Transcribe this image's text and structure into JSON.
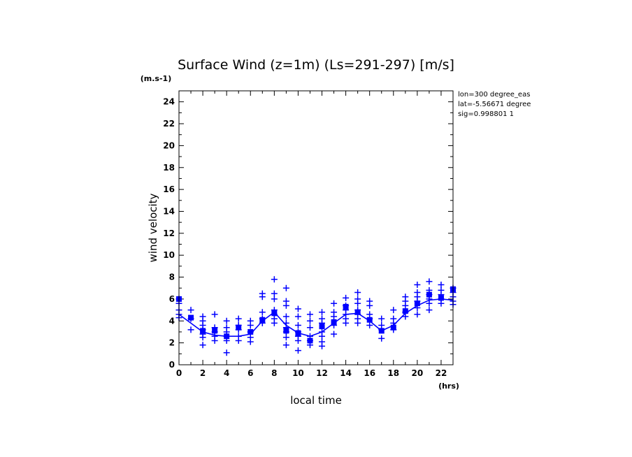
{
  "chart_data": {
    "type": "scatter",
    "title": "Surface Wind (z=1m) (Ls=291-297) [m/s]",
    "y_unit": "(m.s-1)",
    "x_unit": "(hrs)",
    "xlabel": "local time",
    "ylabel": "wind velocity",
    "xlim": [
      0,
      23
    ],
    "ylim": [
      0,
      25
    ],
    "x_ticks": [
      0,
      2,
      4,
      6,
      8,
      10,
      12,
      14,
      16,
      18,
      20,
      22
    ],
    "y_ticks": [
      0,
      2,
      4,
      6,
      8,
      10,
      12,
      14,
      16,
      18,
      20,
      22,
      24
    ],
    "info_lines": [
      "lon=300 degree_eas",
      "lat=-5.56671 degree",
      "sig=0.998801 1"
    ],
    "grid": false,
    "colors": {
      "series": "#0000ff",
      "axes": "#000000"
    },
    "series": [
      {
        "kind": "cross",
        "points": [
          [
            0,
            6.0
          ],
          [
            0,
            5.6
          ],
          [
            0,
            5.0
          ],
          [
            0,
            4.6
          ],
          [
            0,
            4.3
          ],
          [
            1,
            5.0
          ],
          [
            1,
            4.2
          ],
          [
            1,
            3.2
          ],
          [
            2,
            4.4
          ],
          [
            2,
            4.0
          ],
          [
            2,
            3.6
          ],
          [
            2,
            3.2
          ],
          [
            2,
            2.8
          ],
          [
            2,
            2.5
          ],
          [
            2,
            1.8
          ],
          [
            3,
            4.6
          ],
          [
            3,
            3.4
          ],
          [
            3,
            3.0
          ],
          [
            3,
            2.6
          ],
          [
            3,
            2.2
          ],
          [
            4,
            4.0
          ],
          [
            4,
            3.4
          ],
          [
            4,
            3.0
          ],
          [
            4,
            2.6
          ],
          [
            4,
            2.2
          ],
          [
            4,
            1.1
          ],
          [
            5,
            4.2
          ],
          [
            5,
            3.6
          ],
          [
            5,
            3.2
          ],
          [
            5,
            2.6
          ],
          [
            5,
            2.2
          ],
          [
            6,
            4.0
          ],
          [
            6,
            3.6
          ],
          [
            6,
            3.0
          ],
          [
            6,
            2.5
          ],
          [
            6,
            2.1
          ],
          [
            7,
            6.5
          ],
          [
            7,
            6.2
          ],
          [
            7,
            4.8
          ],
          [
            7,
            4.2
          ],
          [
            7,
            3.8
          ],
          [
            8,
            7.8
          ],
          [
            8,
            6.5
          ],
          [
            8,
            6.0
          ],
          [
            8,
            5.0
          ],
          [
            8,
            4.6
          ],
          [
            8,
            4.2
          ],
          [
            8,
            3.8
          ],
          [
            9,
            7.0
          ],
          [
            9,
            5.8
          ],
          [
            9,
            5.4
          ],
          [
            9,
            4.4
          ],
          [
            9,
            3.8
          ],
          [
            9,
            3.4
          ],
          [
            9,
            3.0
          ],
          [
            9,
            2.5
          ],
          [
            9,
            1.8
          ],
          [
            10,
            5.1
          ],
          [
            10,
            4.4
          ],
          [
            10,
            3.6
          ],
          [
            10,
            3.0
          ],
          [
            10,
            2.6
          ],
          [
            10,
            2.2
          ],
          [
            10,
            1.3
          ],
          [
            11,
            4.6
          ],
          [
            11,
            4.0
          ],
          [
            11,
            3.4
          ],
          [
            11,
            2.6
          ],
          [
            11,
            2.2
          ],
          [
            11,
            1.8
          ],
          [
            12,
            4.8
          ],
          [
            12,
            4.2
          ],
          [
            12,
            3.8
          ],
          [
            12,
            3.0
          ],
          [
            12,
            2.6
          ],
          [
            12,
            2.1
          ],
          [
            12,
            1.7
          ],
          [
            13,
            5.6
          ],
          [
            13,
            4.8
          ],
          [
            13,
            4.4
          ],
          [
            13,
            3.6
          ],
          [
            13,
            2.8
          ],
          [
            14,
            6.1
          ],
          [
            14,
            5.4
          ],
          [
            14,
            5.0
          ],
          [
            14,
            4.6
          ],
          [
            14,
            4.2
          ],
          [
            14,
            3.8
          ],
          [
            15,
            6.6
          ],
          [
            15,
            6.0
          ],
          [
            15,
            5.6
          ],
          [
            15,
            5.0
          ],
          [
            15,
            4.6
          ],
          [
            15,
            4.2
          ],
          [
            15,
            3.8
          ],
          [
            16,
            5.8
          ],
          [
            16,
            5.4
          ],
          [
            16,
            4.6
          ],
          [
            16,
            4.2
          ],
          [
            16,
            3.6
          ],
          [
            17,
            4.2
          ],
          [
            17,
            3.6
          ],
          [
            17,
            3.2
          ],
          [
            17,
            2.4
          ],
          [
            18,
            5.0
          ],
          [
            18,
            4.2
          ],
          [
            18,
            3.8
          ],
          [
            18,
            3.2
          ],
          [
            19,
            6.2
          ],
          [
            19,
            5.8
          ],
          [
            19,
            5.4
          ],
          [
            19,
            4.8
          ],
          [
            19,
            4.4
          ],
          [
            20,
            7.3
          ],
          [
            20,
            6.6
          ],
          [
            20,
            6.2
          ],
          [
            20,
            5.8
          ],
          [
            20,
            5.2
          ],
          [
            20,
            4.6
          ],
          [
            21,
            7.6
          ],
          [
            21,
            6.8
          ],
          [
            21,
            6.4
          ],
          [
            21,
            6.0
          ],
          [
            21,
            5.6
          ],
          [
            21,
            5.0
          ],
          [
            22,
            7.3
          ],
          [
            22,
            6.8
          ],
          [
            22,
            6.4
          ],
          [
            22,
            6.0
          ],
          [
            22,
            5.6
          ],
          [
            23,
            7.0
          ],
          [
            23,
            6.6
          ],
          [
            23,
            6.2
          ],
          [
            23,
            5.8
          ],
          [
            23,
            5.5
          ]
        ]
      },
      {
        "kind": "square",
        "points": [
          [
            0,
            6.0
          ],
          [
            1,
            4.3
          ],
          [
            2,
            3.1
          ],
          [
            3,
            3.1
          ],
          [
            4,
            2.6
          ],
          [
            5,
            3.4
          ],
          [
            6,
            3.0
          ],
          [
            7,
            4.1
          ],
          [
            8,
            4.7
          ],
          [
            9,
            3.1
          ],
          [
            10,
            2.9
          ],
          [
            11,
            2.2
          ],
          [
            12,
            3.5
          ],
          [
            13,
            3.9
          ],
          [
            14,
            5.3
          ],
          [
            15,
            4.8
          ],
          [
            16,
            4.1
          ],
          [
            17,
            3.1
          ],
          [
            18,
            3.4
          ],
          [
            19,
            4.9
          ],
          [
            20,
            5.6
          ],
          [
            21,
            6.4
          ],
          [
            22,
            6.1
          ],
          [
            23,
            6.9
          ]
        ]
      },
      {
        "kind": "line",
        "points": [
          [
            0,
            4.6
          ],
          [
            1,
            3.8
          ],
          [
            2,
            3.0
          ],
          [
            3,
            2.7
          ],
          [
            4,
            2.6
          ],
          [
            5,
            2.6
          ],
          [
            6,
            2.8
          ],
          [
            7,
            4.0
          ],
          [
            8,
            4.8
          ],
          [
            9,
            3.6
          ],
          [
            10,
            2.9
          ],
          [
            11,
            2.6
          ],
          [
            12,
            3.0
          ],
          [
            13,
            3.8
          ],
          [
            14,
            4.6
          ],
          [
            15,
            4.7
          ],
          [
            16,
            4.0
          ],
          [
            17,
            3.1
          ],
          [
            18,
            3.6
          ],
          [
            19,
            4.7
          ],
          [
            20,
            5.4
          ],
          [
            21,
            5.9
          ],
          [
            22,
            6.0
          ],
          [
            23,
            5.9
          ]
        ]
      }
    ]
  }
}
